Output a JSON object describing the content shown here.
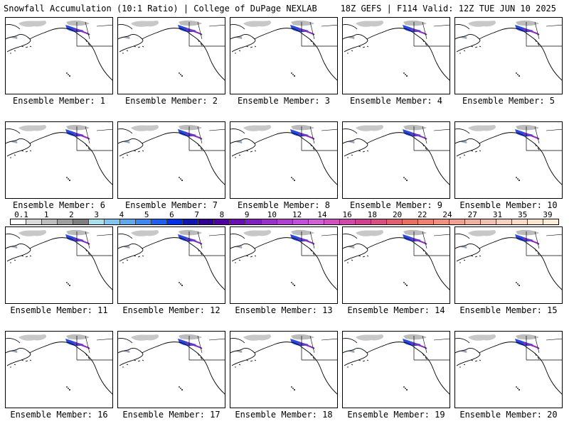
{
  "header": {
    "left": "Snowfall Accumulation (10:1 Ratio) | College of DuPage NEXLAB",
    "right": "18Z GEFS | F114 Valid: 12Z TUE JUN 10 2025"
  },
  "members": [
    "Ensemble Member: 1",
    "Ensemble Member: 2",
    "Ensemble Member: 3",
    "Ensemble Member: 4",
    "Ensemble Member: 5",
    "Ensemble Member: 6",
    "Ensemble Member: 7",
    "Ensemble Member: 8",
    "Ensemble Member: 9",
    "Ensemble Member: 10",
    "Ensemble Member: 11",
    "Ensemble Member: 12",
    "Ensemble Member: 13",
    "Ensemble Member: 14",
    "Ensemble Member: 15",
    "Ensemble Member: 16",
    "Ensemble Member: 17",
    "Ensemble Member: 18",
    "Ensemble Member: 19",
    "Ensemble Member: 20"
  ],
  "legend": {
    "labels": [
      "0.1",
      "1",
      "2",
      "3",
      "4",
      "5",
      "6",
      "7",
      "8",
      "9",
      "10",
      "12",
      "14",
      "16",
      "18",
      "20",
      "22",
      "24",
      "27",
      "31",
      "35",
      "39"
    ],
    "colors": [
      "#ffffff",
      "#d9d9d9",
      "#bdbdbd",
      "#9e9e9e",
      "#7f7f7f",
      "#a8e0f0",
      "#7fc6f0",
      "#5fa8f0",
      "#3f88f0",
      "#2060f0",
      "#0030e8",
      "#1018b0",
      "#300090",
      "#5000a0",
      "#6a10b0",
      "#8020c0",
      "#9a30c8",
      "#b040d0",
      "#c050d8",
      "#d060d8",
      "#d050c0",
      "#d048a8",
      "#d04090",
      "#d85080",
      "#e06070",
      "#e87060",
      "#f08070",
      "#f09080",
      "#f0a090",
      "#f0b0a0",
      "#f0c0b0",
      "#f8d0c0",
      "#f8dcc8",
      "#fae4d0",
      "#fcecd8"
    ]
  }
}
